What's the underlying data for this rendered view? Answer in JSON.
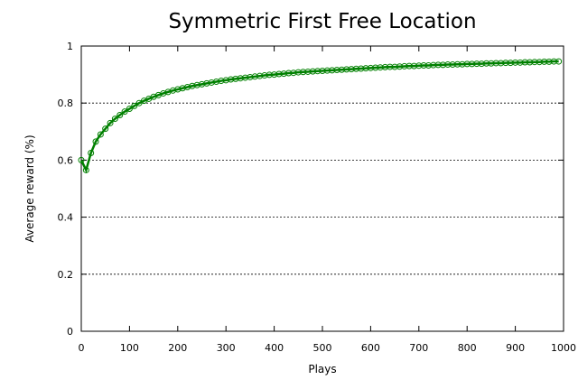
{
  "chart_data": {
    "type": "line",
    "title": "Symmetric First Free Location",
    "xlabel": "Plays",
    "ylabel": "Average reward (%)",
    "xlim": [
      0,
      1000
    ],
    "ylim": [
      0,
      1
    ],
    "xticks": [
      0,
      100,
      200,
      300,
      400,
      500,
      600,
      700,
      800,
      900,
      1000
    ],
    "xtick_labels": [
      "0",
      "100",
      "200",
      "300",
      "400",
      "500",
      "600",
      "700",
      "800",
      "900",
      "1000"
    ],
    "yticks": [
      0,
      0.2,
      0.4,
      0.6,
      0.8,
      1
    ],
    "ytick_labels": [
      "0",
      "0.2",
      "0.4",
      "0.6",
      "0.8",
      "1"
    ],
    "grid": "horizontal-dashed",
    "series": [
      {
        "color": "#008000",
        "marker": "circle-open",
        "x": [
          0,
          10,
          20,
          30,
          40,
          50,
          60,
          70,
          80,
          90,
          100,
          110,
          120,
          130,
          140,
          150,
          160,
          170,
          180,
          190,
          200,
          210,
          220,
          230,
          240,
          250,
          260,
          270,
          280,
          290,
          300,
          310,
          320,
          330,
          340,
          350,
          360,
          370,
          380,
          390,
          400,
          410,
          420,
          430,
          440,
          450,
          460,
          470,
          480,
          490,
          500,
          510,
          520,
          530,
          540,
          550,
          560,
          570,
          580,
          590,
          600,
          610,
          620,
          630,
          640,
          650,
          660,
          670,
          680,
          690,
          700,
          710,
          720,
          730,
          740,
          750,
          760,
          770,
          780,
          790,
          800,
          810,
          820,
          830,
          840,
          850,
          860,
          870,
          880,
          890,
          900,
          910,
          920,
          930,
          940,
          950,
          960,
          970,
          980,
          990
        ],
        "y": [
          0.6,
          0.565,
          0.625,
          0.665,
          0.69,
          0.71,
          0.73,
          0.745,
          0.758,
          0.77,
          0.78,
          0.79,
          0.8,
          0.808,
          0.815,
          0.822,
          0.828,
          0.834,
          0.839,
          0.844,
          0.848,
          0.852,
          0.856,
          0.86,
          0.863,
          0.866,
          0.869,
          0.872,
          0.875,
          0.878,
          0.88,
          0.883,
          0.885,
          0.887,
          0.889,
          0.891,
          0.893,
          0.895,
          0.897,
          0.899,
          0.9,
          0.902,
          0.903,
          0.905,
          0.906,
          0.908,
          0.909,
          0.91,
          0.911,
          0.912,
          0.913,
          0.914,
          0.915,
          0.916,
          0.917,
          0.918,
          0.919,
          0.92,
          0.921,
          0.922,
          0.923,
          0.924,
          0.925,
          0.926,
          0.927,
          0.927,
          0.928,
          0.929,
          0.93,
          0.93,
          0.931,
          0.932,
          0.932,
          0.933,
          0.934,
          0.934,
          0.935,
          0.935,
          0.936,
          0.936,
          0.937,
          0.937,
          0.938,
          0.938,
          0.939,
          0.939,
          0.94,
          0.94,
          0.941,
          0.941,
          0.942,
          0.942,
          0.943,
          0.943,
          0.944,
          0.944,
          0.945,
          0.945,
          0.946,
          0.946
        ]
      }
    ]
  }
}
